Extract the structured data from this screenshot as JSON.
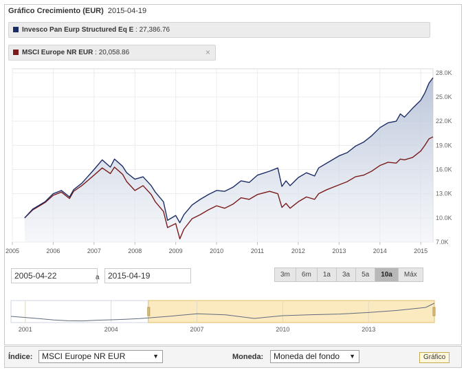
{
  "header": {
    "title": "Gráfico Crecimiento (EUR)",
    "date": "2015-04-19"
  },
  "legend": [
    {
      "name": "Invesco Pan Eurp Structured Eq E",
      "value": "27,386.76",
      "color": "#1b2b63"
    },
    {
      "name": "MSCI Europe NR EUR",
      "value": "20,058.86",
      "color": "#7a1a1a",
      "close": "×"
    }
  ],
  "chart_data": {
    "type": "line",
    "title": "Gráfico Crecimiento (EUR)",
    "x_range": [
      2005.0,
      2015.3
    ],
    "ylim": [
      7000,
      28500
    ],
    "y_ticks": [
      7000,
      10000,
      13000,
      16000,
      19000,
      22000,
      25000,
      28000
    ],
    "y_tick_labels": [
      "7.0K",
      "10.0K",
      "13.0K",
      "16.0K",
      "19.0K",
      "22.0K",
      "25.0K",
      "28.0K"
    ],
    "x_tick_labels": [
      "2005",
      "2006",
      "2007",
      "2008",
      "2009",
      "2010",
      "2011",
      "2012",
      "2013",
      "2014",
      "2015"
    ],
    "series": [
      {
        "name": "Invesco Pan Eurp Structured Eq E",
        "color": "#1b2b63",
        "fill": true,
        "x": [
          2005.3,
          2005.5,
          2005.8,
          2006.0,
          2006.2,
          2006.4,
          2006.5,
          2006.7,
          2007.0,
          2007.2,
          2007.4,
          2007.5,
          2007.7,
          2007.8,
          2008.0,
          2008.2,
          2008.4,
          2008.5,
          2008.7,
          2008.8,
          2009.0,
          2009.1,
          2009.2,
          2009.4,
          2009.6,
          2009.8,
          2010.0,
          2010.2,
          2010.4,
          2010.6,
          2010.8,
          2011.0,
          2011.3,
          2011.5,
          2011.6,
          2011.7,
          2011.8,
          2012.0,
          2012.2,
          2012.4,
          2012.5,
          2012.7,
          2013.0,
          2013.2,
          2013.4,
          2013.6,
          2013.8,
          2014.0,
          2014.2,
          2014.4,
          2014.5,
          2014.6,
          2014.8,
          2015.0,
          2015.1,
          2015.2,
          2015.3
        ],
        "values": [
          10000,
          11100,
          12000,
          13000,
          13400,
          12600,
          13500,
          14300,
          16000,
          17200,
          16300,
          17300,
          16400,
          15600,
          14800,
          15100,
          14000,
          13200,
          12000,
          9700,
          10300,
          9400,
          10400,
          11600,
          12300,
          12900,
          13400,
          13300,
          13800,
          14600,
          14400,
          15300,
          15800,
          16200,
          13900,
          14600,
          14000,
          15000,
          15600,
          15200,
          16200,
          16800,
          17700,
          18100,
          18900,
          19400,
          20200,
          21200,
          21800,
          22000,
          22900,
          22500,
          23600,
          24600,
          25500,
          26700,
          27387
        ]
      },
      {
        "name": "MSCI Europe NR EUR",
        "color": "#7a1a1a",
        "fill": false,
        "x": [
          2005.3,
          2005.5,
          2005.8,
          2006.0,
          2006.2,
          2006.4,
          2006.5,
          2006.7,
          2007.0,
          2007.2,
          2007.4,
          2007.5,
          2007.7,
          2007.8,
          2008.0,
          2008.2,
          2008.4,
          2008.5,
          2008.7,
          2008.8,
          2009.0,
          2009.1,
          2009.2,
          2009.4,
          2009.6,
          2009.8,
          2010.0,
          2010.2,
          2010.4,
          2010.6,
          2010.8,
          2011.0,
          2011.3,
          2011.5,
          2011.6,
          2011.7,
          2011.8,
          2012.0,
          2012.2,
          2012.4,
          2012.5,
          2012.7,
          2013.0,
          2013.2,
          2013.4,
          2013.6,
          2013.8,
          2014.0,
          2014.2,
          2014.4,
          2014.5,
          2014.6,
          2014.8,
          2015.0,
          2015.1,
          2015.2,
          2015.3
        ],
        "values": [
          10000,
          11000,
          11900,
          12800,
          13200,
          12400,
          13300,
          14000,
          15300,
          16200,
          15500,
          16300,
          15400,
          14500,
          13400,
          14000,
          12900,
          12000,
          10800,
          8800,
          9300,
          7400,
          8600,
          9900,
          10400,
          11000,
          11500,
          11200,
          11700,
          12500,
          12300,
          12900,
          13300,
          13000,
          11300,
          11800,
          11200,
          12000,
          12600,
          12300,
          13000,
          13500,
          14100,
          14500,
          15100,
          15300,
          15800,
          16500,
          16900,
          16800,
          17300,
          17200,
          17500,
          18300,
          19000,
          19800,
          20059
        ]
      }
    ]
  },
  "date_range": {
    "from": "2005-04-22",
    "sep": "a",
    "to": "2015-04-19"
  },
  "ranges": [
    {
      "label": "3m",
      "active": false
    },
    {
      "label": "6m",
      "active": false
    },
    {
      "label": "1a",
      "active": false
    },
    {
      "label": "3a",
      "active": false
    },
    {
      "label": "5a",
      "active": false
    },
    {
      "label": "10a",
      "active": true
    },
    {
      "label": "Máx",
      "active": false
    }
  ],
  "navigator": {
    "x_range": [
      2000.5,
      2015.3
    ],
    "selection": [
      2005.3,
      2015.3
    ],
    "x_tick_labels": [
      "2001",
      "2004",
      "2007",
      "2010",
      "2013"
    ],
    "x": [
      2000.5,
      2001.0,
      2001.5,
      2002.0,
      2002.5,
      2003.0,
      2003.5,
      2004.0,
      2004.5,
      2005.0,
      2006.0,
      2007.0,
      2008.0,
      2009.0,
      2010.0,
      2011.0,
      2012.0,
      2013.0,
      2014.0,
      2015.0,
      2015.3
    ],
    "values": [
      10500,
      9700,
      8800,
      7900,
      7300,
      7200,
      7700,
      8000,
      8400,
      8900,
      10500,
      12400,
      11600,
      9000,
      11000,
      11700,
      12200,
      13300,
      14800,
      17000,
      20059
    ]
  },
  "bottom_bar": {
    "index_label": "Índice:",
    "index_value": "MSCI Europe NR EUR",
    "currency_label": "Moneda:",
    "currency_value": "Moneda del fondo",
    "chart_button": "Gráfico",
    "arrow": "▼"
  }
}
